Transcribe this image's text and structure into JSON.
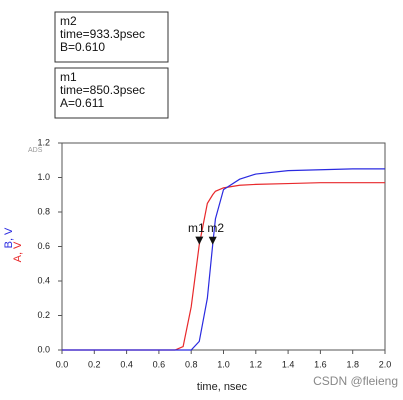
{
  "chart_data": {
    "type": "line",
    "brand": "ADS",
    "xlabel": "time, nsec",
    "watermark": "CSDN @fleieng",
    "x": [
      0,
      0.7,
      0.75,
      0.8,
      0.85,
      0.9,
      0.933,
      0.95,
      1.0,
      1.1,
      1.2,
      1.4,
      1.6,
      1.8,
      2.0
    ],
    "series": [
      {
        "name": "A, V",
        "color": "#e8292c",
        "values": [
          0,
          0,
          0.02,
          0.25,
          0.611,
          0.85,
          0.9,
          0.92,
          0.94,
          0.955,
          0.96,
          0.965,
          0.97,
          0.97,
          0.97
        ]
      },
      {
        "name": "B, V",
        "color": "#2a2ae0",
        "values": [
          0,
          0,
          0,
          0,
          0.05,
          0.3,
          0.61,
          0.76,
          0.93,
          0.99,
          1.02,
          1.04,
          1.045,
          1.05,
          1.05
        ]
      }
    ],
    "xlim": [
      0,
      2.0
    ],
    "ylim": [
      0,
      1.2
    ],
    "xticks": [
      {
        "value": 0,
        "label": "0.0"
      },
      {
        "value": 0.2,
        "label": "0.2"
      },
      {
        "value": 0.4,
        "label": "0.4"
      },
      {
        "value": 0.6,
        "label": "0.6"
      },
      {
        "value": 0.8,
        "label": "0.8"
      },
      {
        "value": 1.0,
        "label": "1.0"
      },
      {
        "value": 1.2,
        "label": "1.2"
      },
      {
        "value": 1.4,
        "label": "1.4"
      },
      {
        "value": 1.6,
        "label": "1.6"
      },
      {
        "value": 1.8,
        "label": "1.8"
      },
      {
        "value": 2.0,
        "label": "2.0"
      }
    ],
    "yticks": [
      {
        "value": 0,
        "label": "0.0"
      },
      {
        "value": 0.2,
        "label": "0.2"
      },
      {
        "value": 0.4,
        "label": "0.4"
      },
      {
        "value": 0.6,
        "label": "0.6"
      },
      {
        "value": 0.8,
        "label": "0.8"
      },
      {
        "value": 1.0,
        "label": "1.0"
      },
      {
        "value": 1.2,
        "label": "1.2"
      }
    ],
    "markers": [
      {
        "name": "m2",
        "x": 0.9333,
        "y": 0.61,
        "lines": [
          "m2",
          "time=933.3psec",
          "B=0.610"
        ]
      },
      {
        "name": "m1",
        "x": 0.8503,
        "y": 0.611,
        "lines": [
          "m1",
          "time=850.3psec",
          "A=0.611"
        ]
      }
    ]
  }
}
